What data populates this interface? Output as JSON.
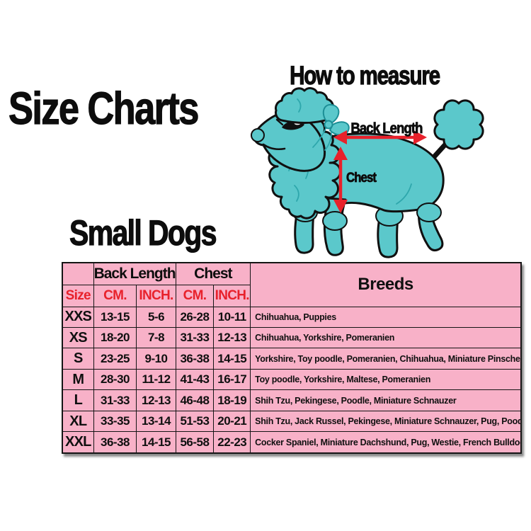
{
  "titles": {
    "main": "Size Charts",
    "how_to_measure": "How to measure",
    "section": "Small Dogs"
  },
  "measure_labels": {
    "back_length": "Back Length",
    "chest": "Chest"
  },
  "colors": {
    "pink": "#F8B1C8",
    "red": "#E8212B",
    "teal": "#5BC8CB",
    "teal_dark": "#2EA7AC",
    "ink": "#101010"
  },
  "table": {
    "group_headers": [
      {
        "label": "Back Length"
      },
      {
        "label": "Chest"
      },
      {
        "label": "Breeds"
      }
    ],
    "sub_headers": [
      "Size",
      "CM.",
      "INCH.",
      "CM.",
      "INCH."
    ],
    "rows": [
      {
        "size": "XXS",
        "back_cm": "13-15",
        "back_inch": "5-6",
        "chest_cm": "26-28",
        "chest_inch": "10-11",
        "breeds": "Chihuahua, Puppies"
      },
      {
        "size": "XS",
        "back_cm": "18-20",
        "back_inch": "7-8",
        "chest_cm": "31-33",
        "chest_inch": "12-13",
        "breeds": "Chihuahua, Yorkshire, Pomeranien"
      },
      {
        "size": "S",
        "back_cm": "23-25",
        "back_inch": "9-10",
        "chest_cm": "36-38",
        "chest_inch": "14-15",
        "breeds": "Yorkshire, Toy poodle, Pomeranien, Chihuahua, Miniature Pinscher"
      },
      {
        "size": "M",
        "back_cm": "28-30",
        "back_inch": "11-12",
        "chest_cm": "41-43",
        "chest_inch": "16-17",
        "breeds": "Toy poodle, Yorkshire, Maltese, Pomeranien"
      },
      {
        "size": "L",
        "back_cm": "31-33",
        "back_inch": "12-13",
        "chest_cm": "46-48",
        "chest_inch": "18-19",
        "breeds": "Shih Tzu, Pekingese, Poodle, Miniature Schnauzer"
      },
      {
        "size": "XL",
        "back_cm": "33-35",
        "back_inch": "13-14",
        "chest_cm": "51-53",
        "chest_inch": "20-21",
        "breeds": "Shih Tzu, Jack Russel, Pekingese, Miniature Schnauzer, Pug, Poodle, Westie"
      },
      {
        "size": "XXL",
        "back_cm": "36-38",
        "back_inch": "14-15",
        "chest_cm": "56-58",
        "chest_inch": "22-23",
        "breeds": "Cocker Spaniel, Miniature Dachshund, Pug, Westie, French Bulldog, Beagle"
      }
    ]
  }
}
